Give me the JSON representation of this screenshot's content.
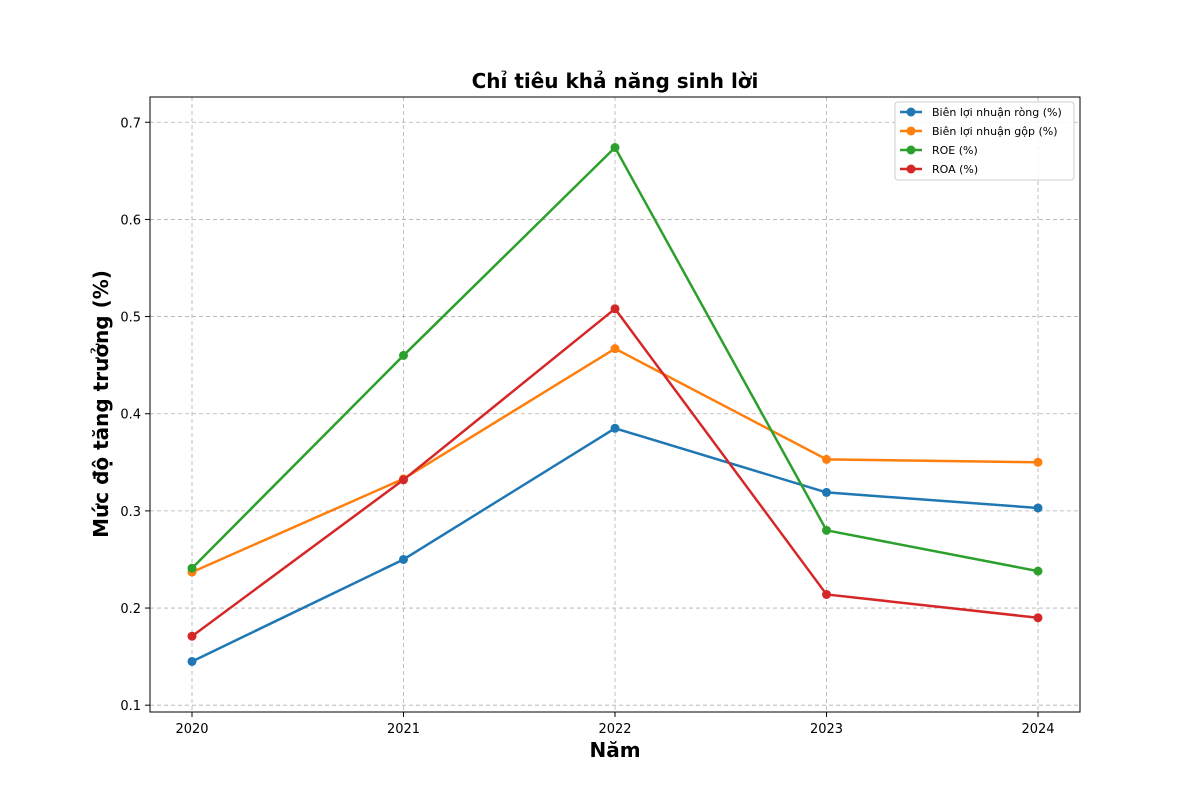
{
  "chart_data": {
    "type": "line",
    "title": "Chỉ tiêu khả năng sinh lời",
    "xlabel": "Năm",
    "ylabel": "Mức độ tăng trưởng (%)",
    "categories": [
      "2020",
      "2021",
      "2022",
      "2023",
      "2024"
    ],
    "ylim": [
      0.093,
      0.726
    ],
    "yticks": [
      "0.1",
      "0.2",
      "0.3",
      "0.4",
      "0.5",
      "0.6",
      "0.7"
    ],
    "grid": true,
    "legend_position": "top-right",
    "series": [
      {
        "name": "Biên lợi nhuận ròng (%)",
        "color": "#1f77b4",
        "values": [
          0.145,
          0.25,
          0.385,
          0.319,
          0.303
        ]
      },
      {
        "name": "Biên lợi nhuận gộp (%)",
        "color": "#ff7f0e",
        "values": [
          0.237,
          0.333,
          0.467,
          0.353,
          0.35
        ]
      },
      {
        "name": "ROE (%)",
        "color": "#2ca02c",
        "values": [
          0.241,
          0.46,
          0.674,
          0.28,
          0.238
        ]
      },
      {
        "name": "ROA (%)",
        "color": "#d62728",
        "values": [
          0.171,
          0.332,
          0.508,
          0.214,
          0.19
        ]
      }
    ]
  }
}
